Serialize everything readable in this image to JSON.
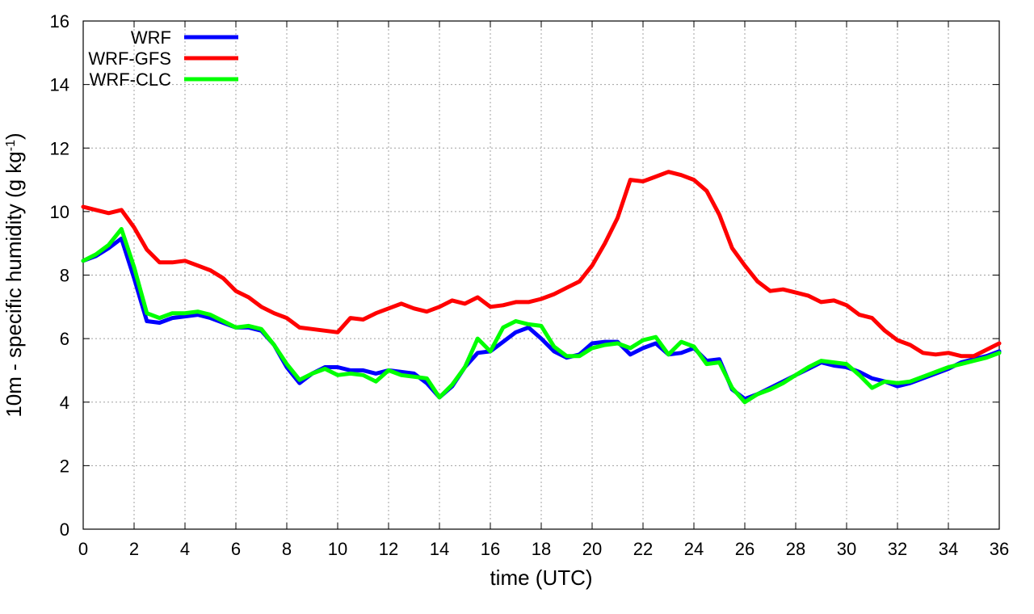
{
  "chart_data": {
    "type": "line",
    "xlabel": "time (UTC)",
    "ylabel": {
      "main": "10m - specific humidity (g kg",
      "sup": "-1",
      "end": ")"
    },
    "xlim": [
      0,
      36
    ],
    "ylim": [
      0,
      16
    ],
    "xticks": [
      0,
      2,
      4,
      6,
      8,
      10,
      12,
      14,
      16,
      18,
      20,
      22,
      24,
      26,
      28,
      30,
      32,
      34,
      36
    ],
    "yticks": [
      0,
      2,
      4,
      6,
      8,
      10,
      12,
      14,
      16
    ],
    "grid": true,
    "legend_position": "top-left",
    "x": [
      0,
      0.5,
      1,
      1.5,
      2,
      2.5,
      3,
      3.5,
      4,
      4.5,
      5,
      5.5,
      6,
      6.5,
      7,
      7.5,
      8,
      8.5,
      9,
      9.5,
      10,
      10.5,
      11,
      11.5,
      12,
      12.5,
      13,
      13.5,
      14,
      14.5,
      15,
      15.5,
      16,
      16.5,
      17,
      17.5,
      18,
      18.5,
      19,
      19.5,
      20,
      20.5,
      21,
      21.5,
      22,
      22.5,
      23,
      23.5,
      24,
      24.5,
      25,
      25.5,
      26,
      26.5,
      27,
      27.5,
      28,
      28.5,
      29,
      29.5,
      30,
      30.5,
      31,
      31.5,
      32,
      32.5,
      33,
      33.5,
      34,
      34.5,
      35,
      35.5,
      36
    ],
    "series": [
      {
        "name": "WRF",
        "color": "#0000ff",
        "values": [
          8.45,
          8.6,
          8.85,
          9.15,
          7.9,
          6.55,
          6.5,
          6.65,
          6.7,
          6.75,
          6.65,
          6.5,
          6.35,
          6.35,
          6.25,
          5.8,
          5.1,
          4.6,
          4.9,
          5.1,
          5.1,
          5.0,
          5.0,
          4.9,
          5.0,
          4.95,
          4.9,
          4.6,
          4.15,
          4.5,
          5.1,
          5.55,
          5.6,
          5.9,
          6.2,
          6.35,
          6.0,
          5.6,
          5.4,
          5.5,
          5.85,
          5.9,
          5.9,
          5.5,
          5.7,
          5.85,
          5.5,
          5.55,
          5.7,
          5.3,
          5.35,
          4.4,
          4.1,
          4.25,
          4.45,
          4.65,
          4.85,
          5.05,
          5.25,
          5.15,
          5.1,
          4.95,
          4.75,
          4.65,
          4.5,
          4.6,
          4.75,
          4.9,
          5.05,
          5.25,
          5.35,
          5.45,
          5.6
        ]
      },
      {
        "name": "WRF-GFS",
        "color": "#ff0000",
        "values": [
          10.15,
          10.05,
          9.95,
          10.05,
          9.5,
          8.8,
          8.4,
          8.4,
          8.45,
          8.3,
          8.15,
          7.9,
          7.5,
          7.3,
          7.0,
          6.8,
          6.65,
          6.35,
          6.3,
          6.25,
          6.2,
          6.65,
          6.6,
          6.8,
          6.95,
          7.1,
          6.95,
          6.85,
          7.0,
          7.2,
          7.1,
          7.3,
          7.0,
          7.05,
          7.15,
          7.15,
          7.25,
          7.4,
          7.6,
          7.8,
          8.3,
          9.0,
          9.8,
          11.0,
          10.95,
          11.1,
          11.25,
          11.15,
          11.0,
          10.65,
          9.9,
          8.85,
          8.3,
          7.8,
          7.5,
          7.55,
          7.45,
          7.35,
          7.15,
          7.2,
          7.05,
          6.75,
          6.65,
          6.25,
          5.95,
          5.8,
          5.55,
          5.5,
          5.55,
          5.45,
          5.45,
          5.65,
          5.85
        ]
      },
      {
        "name": "WRF-CLC",
        "color": "#00ff00",
        "values": [
          8.45,
          8.65,
          8.95,
          9.45,
          8.25,
          6.8,
          6.65,
          6.8,
          6.8,
          6.85,
          6.75,
          6.55,
          6.35,
          6.4,
          6.3,
          5.8,
          5.2,
          4.7,
          4.9,
          5.05,
          4.85,
          4.9,
          4.85,
          4.65,
          5.0,
          4.85,
          4.8,
          4.75,
          4.15,
          4.55,
          5.1,
          6.0,
          5.6,
          6.35,
          6.55,
          6.45,
          6.4,
          5.75,
          5.45,
          5.45,
          5.7,
          5.8,
          5.85,
          5.7,
          5.95,
          6.05,
          5.5,
          5.9,
          5.75,
          5.2,
          5.25,
          4.45,
          4.0,
          4.25,
          4.4,
          4.6,
          4.85,
          5.1,
          5.3,
          5.25,
          5.2,
          4.85,
          4.45,
          4.65,
          4.6,
          4.65,
          4.8,
          4.95,
          5.1,
          5.2,
          5.3,
          5.4,
          5.55
        ]
      }
    ]
  }
}
